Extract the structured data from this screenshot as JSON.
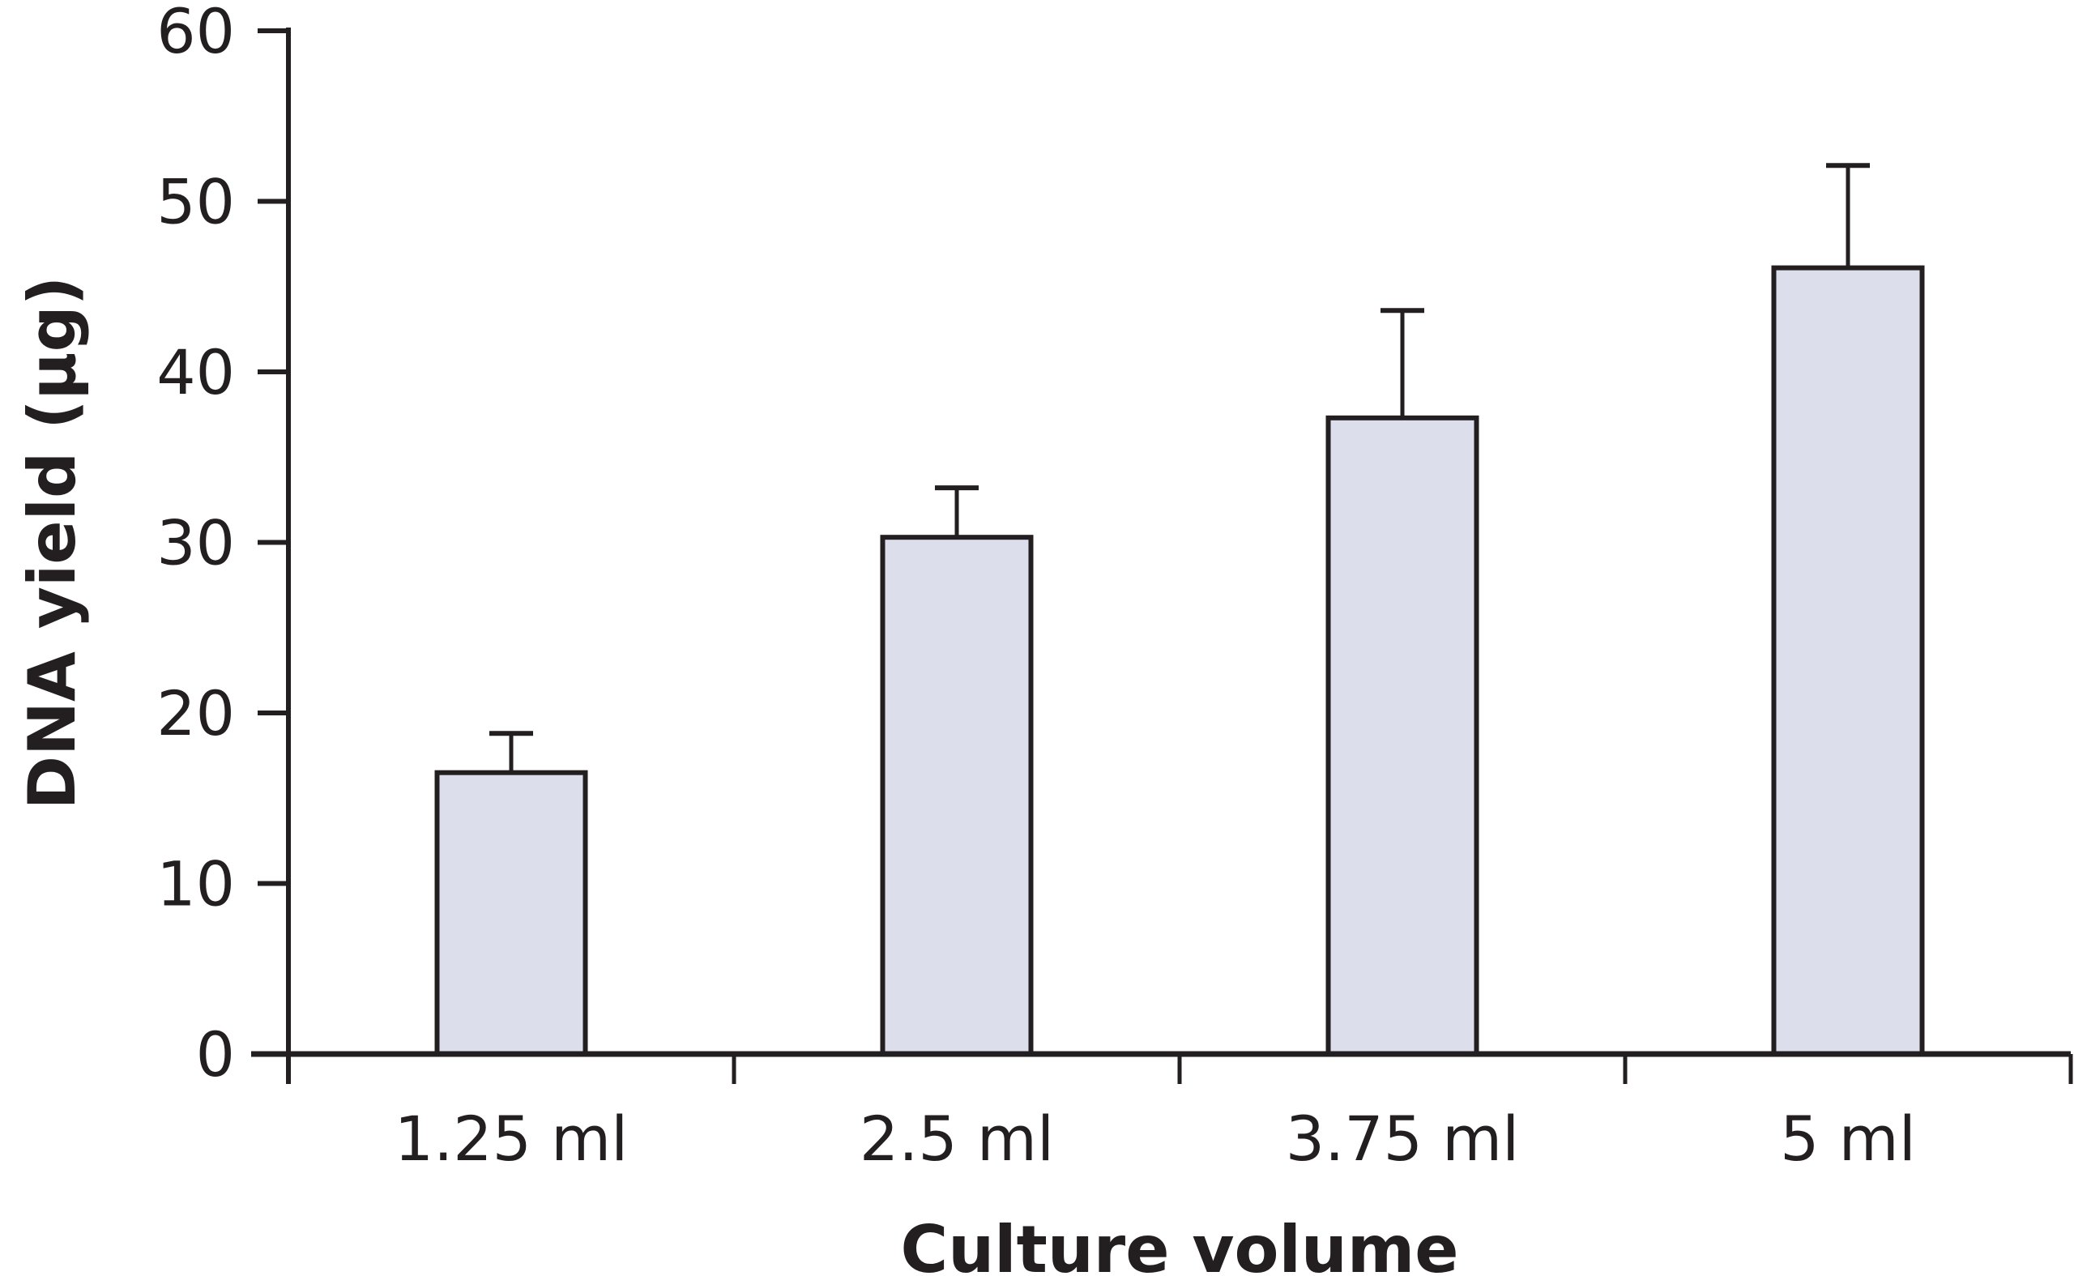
{
  "chart_data": {
    "type": "bar",
    "title": "",
    "xlabel": "Culture volume",
    "ylabel": "DNA yield (µg)",
    "categories": [
      "1.25 ml",
      "2.5 ml",
      "3.75 ml",
      "5 ml"
    ],
    "values": [
      16.5,
      30.3,
      37.3,
      46.1
    ],
    "error_upper": [
      18.8,
      33.2,
      43.6,
      52.1
    ],
    "ylim": [
      0,
      60
    ],
    "yticks": [
      0,
      10,
      20,
      30,
      40,
      50,
      60
    ],
    "ytick_labels": [
      "0",
      "10",
      "20",
      "30",
      "40",
      "50",
      "60"
    ],
    "grid": false,
    "colors": {
      "bar_fill": "#dcdeec",
      "stroke": "#231f20"
    }
  }
}
